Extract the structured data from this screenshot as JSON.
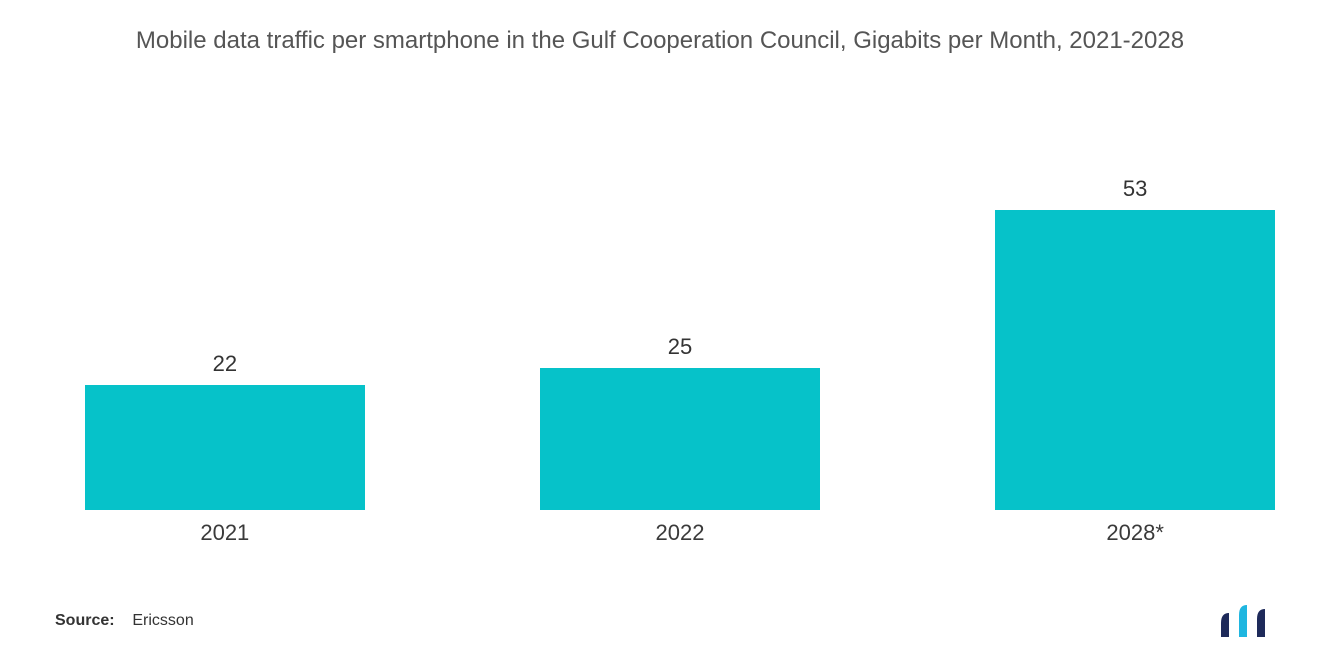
{
  "chart": {
    "type": "bar",
    "title": "Mobile data traffic per smartphone in the Gulf Cooperation Council, Gigabits per Month, 2021-2028",
    "title_fontsize": 24,
    "title_color": "#555555",
    "categories": [
      "2021",
      "2022",
      "2028*"
    ],
    "values": [
      22,
      25,
      53
    ],
    "bar_color": "#06c2c9",
    "value_label_color": "#333333",
    "value_label_fontsize": 22,
    "category_label_fontsize": 22,
    "category_label_color": "#3a3a3a",
    "background_color": "#ffffff",
    "y_max": 60,
    "plot_bar_width_pct": 23.5,
    "plot_gap_pct": 14.75,
    "plot_first_offset_pct": 0
  },
  "source": {
    "label": "Source:",
    "text": "Ericsson",
    "fontsize": 16,
    "color": "#333333"
  },
  "logo": {
    "bar1_color": "#1e2a5a",
    "bar2_color": "#1fb6e0",
    "bar3_color": "#1e2a5a"
  }
}
